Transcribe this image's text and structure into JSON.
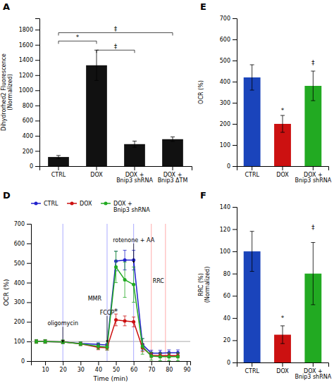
{
  "chart_data": [
    {
      "type": "bar",
      "title": "A",
      "categories": [
        "CTRL",
        "DOX",
        "DOX +\nBnip3 shRNA",
        "DOX +\nBnip3 ΔTM"
      ],
      "values": [
        120,
        1330,
        290,
        355
      ],
      "errors": [
        20,
        200,
        40,
        30
      ],
      "color": "#111111",
      "ylabel": "Dihydrorhed2 Fluorescence\n(Normalized)",
      "ylim": [
        0,
        1950
      ],
      "yticks": [
        0,
        200,
        400,
        600,
        800,
        1000,
        1200,
        1400,
        1600,
        1800
      ],
      "annotations": [
        {
          "text": "*",
          "from": 0,
          "to": 1,
          "y": 1650
        },
        {
          "text": "‡",
          "from": 1,
          "to": 2,
          "y": 1530
        },
        {
          "text": "‡",
          "from": 0,
          "to": 3,
          "y": 1760
        }
      ]
    },
    {
      "type": "line",
      "title": "D",
      "x": [
        5,
        10,
        20,
        30,
        40,
        45,
        50,
        55,
        60,
        65,
        70,
        75,
        80,
        85
      ],
      "xlabel": "Time (min)",
      "ylabel": "OCR (%)",
      "xlim": [
        2,
        92
      ],
      "xticks": [
        10,
        20,
        30,
        40,
        50,
        60,
        70,
        80,
        90
      ],
      "ylim": [
        0,
        700
      ],
      "yticks": [
        0,
        100,
        200,
        300,
        400,
        500,
        600,
        700
      ],
      "legend": "top",
      "series": [
        {
          "name": "CTRL",
          "color": "#2222cc",
          "marker": "circle",
          "values": [
            100,
            100,
            98,
            90,
            85,
            82,
            510,
            515,
            515,
            85,
            40,
            40,
            42,
            42
          ],
          "errors": [
            8,
            8,
            8,
            8,
            8,
            8,
            50,
            50,
            50,
            30,
            15,
            15,
            15,
            15
          ]
        },
        {
          "name": "DOX",
          "color": "#cc1111",
          "marker": "circle",
          "values": [
            100,
            100,
            98,
            88,
            70,
            68,
            210,
            205,
            200,
            68,
            30,
            28,
            28,
            28
          ],
          "errors": [
            8,
            8,
            8,
            8,
            12,
            12,
            30,
            25,
            25,
            20,
            12,
            12,
            12,
            12
          ]
        },
        {
          "name": "DOX +\nBnip3 shRNA",
          "color": "#22aa22",
          "marker": "circle",
          "values": [
            100,
            100,
            98,
            88,
            75,
            72,
            480,
            415,
            390,
            75,
            25,
            22,
            22,
            22
          ],
          "errors": [
            10,
            10,
            10,
            10,
            15,
            15,
            80,
            90,
            90,
            40,
            20,
            20,
            20,
            20
          ]
        }
      ],
      "reference_lines": [
        {
          "axis": "y",
          "value": 100,
          "color": "#aaaaaa"
        },
        {
          "axis": "x",
          "value": 20,
          "color": "#aaaaff"
        },
        {
          "axis": "x",
          "value": 45,
          "color": "#aaaaff"
        },
        {
          "axis": "x",
          "value": 60,
          "color": "#aaaaff"
        },
        {
          "axis": "x",
          "value": 70,
          "color": "#ffaaaa"
        },
        {
          "axis": "x",
          "value": 78,
          "color": "#ffaaaa"
        }
      ],
      "annotations": [
        {
          "text": "oligomycin",
          "x": 20,
          "y": 175,
          "arrow_x": 20,
          "arrow_y": 95
        },
        {
          "text": "FCCP",
          "x": 45,
          "y": 230,
          "arrow_x": 45,
          "arrow_y": 95
        },
        {
          "text": "MMR",
          "x": 38,
          "y": 310
        },
        {
          "text": "rotenone + AA",
          "x": 60,
          "y": 600,
          "arrow_x": 60,
          "arrow_y": 500
        },
        {
          "text": "RRC",
          "x": 74,
          "y": 400
        },
        {
          "text": "*",
          "x": 50,
          "y": 240
        }
      ]
    },
    {
      "type": "bar",
      "title": "E",
      "categories": [
        "CTRL",
        "DOX",
        "DOX +\nBnip3 shRNA"
      ],
      "values": [
        420,
        200,
        380
      ],
      "errors": [
        60,
        40,
        70
      ],
      "colors": [
        "#1a44bb",
        "#cc1111",
        "#22aa22"
      ],
      "ylabel": "OCR (%)",
      "ylim": [
        0,
        700
      ],
      "yticks": [
        0,
        100,
        200,
        300,
        400,
        500,
        600,
        700
      ],
      "annotations": [
        {
          "text": "*",
          "x": 1,
          "y": 255
        },
        {
          "text": "‡",
          "x": 2,
          "y": 480
        }
      ]
    },
    {
      "type": "bar",
      "title": "F",
      "categories": [
        "CTRL",
        "DOX",
        "DOX +\nBnip3 shRNA"
      ],
      "values": [
        100,
        25,
        80
      ],
      "errors": [
        18,
        8,
        28
      ],
      "colors": [
        "#1a44bb",
        "#cc1111",
        "#22aa22"
      ],
      "ylabel": "RRC (%)\n(Normalized)",
      "ylim": [
        0,
        140
      ],
      "yticks": [
        0,
        20,
        40,
        60,
        80,
        100,
        120,
        140
      ],
      "annotations": [
        {
          "text": "*",
          "x": 1,
          "y": 38
        },
        {
          "text": "‡",
          "x": 2,
          "y": 120
        }
      ]
    }
  ]
}
